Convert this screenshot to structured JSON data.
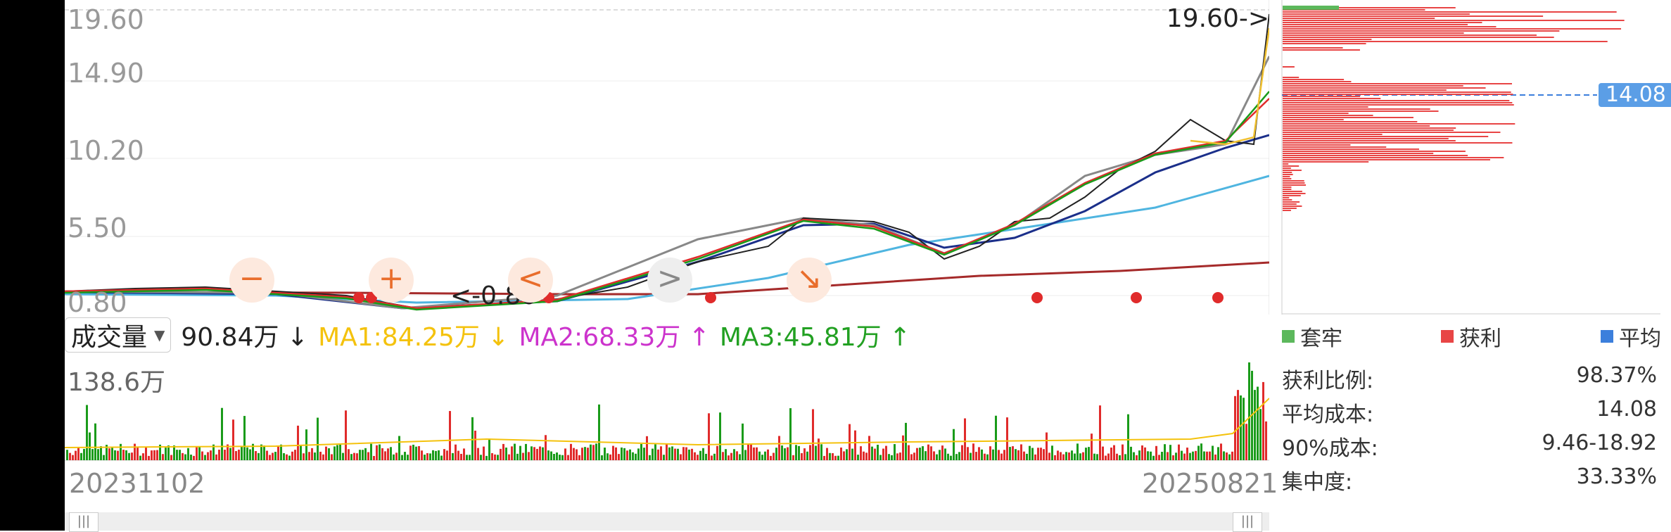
{
  "price_axis": {
    "labels": [
      "19.60",
      "14.90",
      "10.20",
      "5.50",
      "0.80"
    ]
  },
  "max_marker": "19.60->",
  "min_marker": "<-0.80",
  "controls": {
    "zoom_out": "−",
    "zoom_in": "+",
    "prev": "<",
    "next": ">",
    "reset": "↘"
  },
  "volume": {
    "selector": "成交量",
    "caret": "▼",
    "current": "90.84万 ↓",
    "ma1": "MA1:84.25万 ↓",
    "ma2": "MA2:68.33万 ↑",
    "ma3": "MA3:45.81万 ↑",
    "max": "138.6万",
    "colors": {
      "ma1": "#f4c20d",
      "ma2": "#cc33cc",
      "ma3": "#22a022"
    }
  },
  "dates": {
    "start": "20231102",
    "end": "20250821"
  },
  "scroll": {
    "left_thumb": "|||",
    "right_thumb": "|||"
  },
  "chip": {
    "avg_tag": "14.08",
    "legend": [
      "套牢",
      "获利",
      "平均"
    ],
    "legend_colors": [
      "#5cb85c",
      "#e84545",
      "#3c7fdc"
    ],
    "stats": [
      {
        "label": "获利比例:",
        "value": "98.37%"
      },
      {
        "label": "平均成本:",
        "value": "14.08"
      },
      {
        "label": "90%成本:",
        "value": "9.46-18.92"
      },
      {
        "label": "集中度:",
        "value": "33.33%"
      }
    ]
  },
  "colors": {
    "up": "#e02b2b",
    "down": "#1a9b1a",
    "accent": "#e96d2b"
  }
}
